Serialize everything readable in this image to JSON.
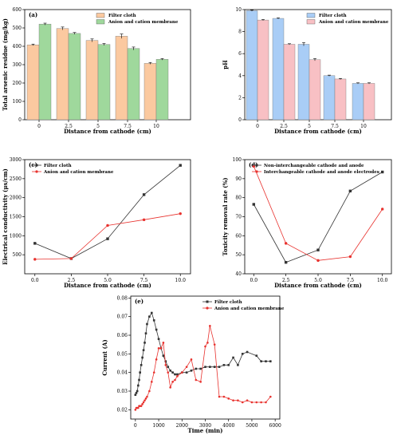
{
  "chart_data": [
    {
      "panel": "(a)",
      "type": "bar",
      "categories": [
        "0",
        "2.5",
        "5",
        "7.5",
        "10"
      ],
      "series": [
        {
          "name": "Filter cloth",
          "values": [
            408,
            497,
            432,
            455,
            307
          ],
          "errors": [
            4,
            8,
            8,
            12,
            5
          ],
          "color": "#fbc9a0"
        },
        {
          "name": "Anion and cation membrane",
          "values": [
            521,
            470,
            410,
            388,
            329
          ],
          "errors": [
            5,
            5,
            5,
            8,
            4
          ],
          "color": "#9fd89c"
        }
      ],
      "xlabel": "Distance from cathode (cm)",
      "ylabel": "Total arsenic residue (mg/kg)",
      "ylim": [
        0,
        600
      ],
      "yticks": [
        0,
        100,
        200,
        300,
        400,
        500,
        600
      ],
      "legend": "top-right"
    },
    {
      "panel": "(b)",
      "type": "bar",
      "categories": [
        "0",
        "2.5",
        "5",
        "7.5",
        "10"
      ],
      "series": [
        {
          "name": "Filter cloth",
          "values": [
            9.9,
            9.2,
            6.85,
            4.0,
            3.3
          ],
          "errors": [
            0.05,
            0.05,
            0.15,
            0.05,
            0.05
          ],
          "color": "#a9cdf6"
        },
        {
          "name": "Anion and cation membrane",
          "values": [
            9.05,
            6.85,
            5.45,
            3.7,
            3.3
          ],
          "errors": [
            0.05,
            0.05,
            0.1,
            0.05,
            0.05
          ],
          "color": "#f8c0c4"
        }
      ],
      "xlabel": "Distance from cathode (cm)",
      "ylabel": "pH",
      "ylim": [
        0,
        10
      ],
      "yticks": [
        0,
        2,
        4,
        6,
        8,
        10
      ],
      "legend": "top-right"
    },
    {
      "panel": "(c)",
      "type": "line",
      "x": [
        0.0,
        2.5,
        5.0,
        7.5,
        10.0
      ],
      "series": [
        {
          "name": "Filter cloth",
          "values": [
            800,
            400,
            920,
            2080,
            2850
          ],
          "color": "#333333",
          "marker": "square"
        },
        {
          "name": "Anion and cation membrane",
          "values": [
            380,
            400,
            1270,
            1420,
            1580
          ],
          "color": "#e8322e",
          "marker": "circle"
        }
      ],
      "xlabel": "Distance from cathode (cm)",
      "ylabel": "Electrical conductivity (μs/cm)",
      "xlim": [
        -0.7,
        10.7
      ],
      "ylim": [
        0,
        3000
      ],
      "xticks": [
        "0.0",
        "2.5",
        "5.0",
        "7.5",
        "10.0"
      ],
      "yticks": [
        500,
        1000,
        1500,
        2000,
        2500,
        3000
      ],
      "legend": "top-left"
    },
    {
      "panel": "(d)",
      "type": "line",
      "x": [
        0.0,
        2.5,
        5.0,
        7.5,
        10.0
      ],
      "series": [
        {
          "name": "Non-interchangeable cathode and anode",
          "values": [
            76.5,
            46,
            52.5,
            83.5,
            93.5
          ],
          "color": "#333333",
          "marker": "square"
        },
        {
          "name": "Interchangeable cathode and anode electrodes",
          "values": [
            96.5,
            56,
            47,
            49,
            74
          ],
          "color": "#e8322e",
          "marker": "circle"
        }
      ],
      "xlabel": "Distance from cathode (cm)",
      "ylabel": "Toxicity removal rate (%)",
      "xlim": [
        -0.7,
        10.7
      ],
      "ylim": [
        40,
        100
      ],
      "xticks": [
        "0.0",
        "2.5",
        "5.0",
        "7.5",
        "10.0"
      ],
      "yticks": [
        40,
        50,
        60,
        70,
        80,
        90,
        100
      ],
      "legend": "top-left"
    },
    {
      "panel": "(e)",
      "type": "line",
      "series": [
        {
          "name": "Filter cloth",
          "color": "#333333",
          "marker": "square",
          "x": [
            0,
            40,
            80,
            120,
            160,
            200,
            250,
            300,
            350,
            400,
            450,
            500,
            600,
            700,
            800,
            900,
            1000,
            1100,
            1200,
            1300,
            1400,
            1500,
            1600,
            1700,
            1800,
            2000,
            2200,
            2400,
            2600,
            2800,
            3000,
            3200,
            3400,
            3600,
            3800,
            4000,
            4200,
            4400,
            4600,
            4800,
            5200,
            5400,
            5600,
            5800
          ],
          "y": [
            0.028,
            0.029,
            0.03,
            0.033,
            0.036,
            0.04,
            0.044,
            0.048,
            0.052,
            0.056,
            0.061,
            0.066,
            0.07,
            0.072,
            0.068,
            0.063,
            0.058,
            0.053,
            0.049,
            0.046,
            0.043,
            0.041,
            0.04,
            0.039,
            0.039,
            0.04,
            0.04,
            0.041,
            0.042,
            0.042,
            0.043,
            0.043,
            0.043,
            0.043,
            0.044,
            0.044,
            0.048,
            0.044,
            0.05,
            0.051,
            0.049,
            0.046,
            0.046,
            0.046
          ]
        },
        {
          "name": "Anion and cation membrane",
          "color": "#e8322e",
          "marker": "circle",
          "x": [
            0,
            40,
            80,
            120,
            160,
            200,
            250,
            300,
            350,
            400,
            450,
            500,
            600,
            700,
            800,
            900,
            1000,
            1100,
            1200,
            1300,
            1400,
            1500,
            1600,
            1700,
            1800,
            2000,
            2200,
            2400,
            2600,
            2800,
            3000,
            3100,
            3200,
            3400,
            3600,
            3800,
            4000,
            4200,
            4400,
            4600,
            4800,
            5000,
            5200,
            5400,
            5600,
            5800
          ],
          "y": [
            0.02,
            0.021,
            0.021,
            0.021,
            0.022,
            0.022,
            0.022,
            0.023,
            0.024,
            0.025,
            0.026,
            0.027,
            0.03,
            0.035,
            0.04,
            0.047,
            0.053,
            0.053,
            0.056,
            0.044,
            0.04,
            0.032,
            0.035,
            0.036,
            0.038,
            0.04,
            0.043,
            0.047,
            0.036,
            0.035,
            0.054,
            0.056,
            0.065,
            0.055,
            0.027,
            0.027,
            0.026,
            0.025,
            0.025,
            0.024,
            0.025,
            0.024,
            0.024,
            0.024,
            0.024,
            0.027
          ]
        }
      ],
      "xlabel": "Time (min)",
      "ylabel": "Current (A)",
      "xlim": [
        -200,
        6200
      ],
      "ylim": [
        0.015,
        0.081
      ],
      "xticks": [
        0,
        1000,
        2000,
        3000,
        4000,
        5000,
        6000
      ],
      "yticks": [
        0.02,
        0.03,
        0.04,
        0.05,
        0.06,
        0.07,
        0.08
      ],
      "legend": "top-right"
    }
  ]
}
